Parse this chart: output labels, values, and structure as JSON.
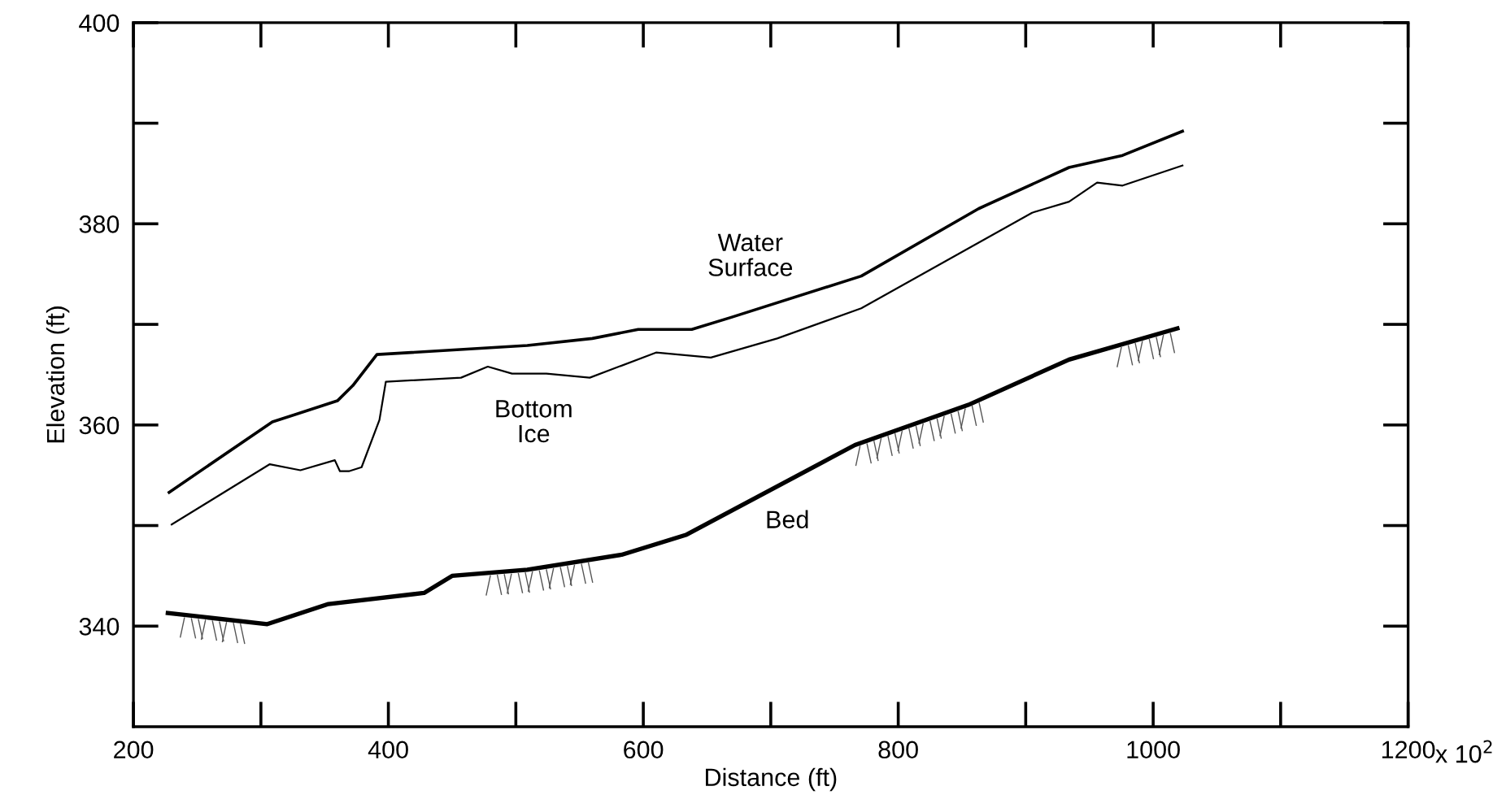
{
  "chart_data": {
    "type": "line",
    "xlabel": "Distance (ft)",
    "ylabel": "Elevation (ft)",
    "xlim": [
      200,
      1200
    ],
    "ylim": [
      330,
      400
    ],
    "xticks": [
      200,
      {
        "value": 300,
        "label": null
      },
      400,
      {
        "value": 500,
        "label": null
      },
      600,
      {
        "value": 700,
        "label": null
      },
      800,
      {
        "value": 900,
        "label": null
      },
      1000,
      {
        "value": 1100,
        "label": null
      },
      1200
    ],
    "yticks": [
      340,
      {
        "value": 350,
        "label": null
      },
      360,
      {
        "value": 370,
        "label": null
      },
      380,
      {
        "value": 390,
        "label": null
      },
      400
    ],
    "grid": false,
    "legend": false,
    "marker": "none",
    "line_style": "solid",
    "series": [
      {
        "name": "Water\nSurface",
        "color": "#000000",
        "x": [
          228,
          309,
          360,
          372,
          391,
          509,
          560,
          596,
          638,
          669,
          771,
          863,
          934,
          976,
          1023
        ],
        "values": [
          353.3,
          360.3,
          362.4,
          363.9,
          367.0,
          367.9,
          368.6,
          369.5,
          369.5,
          370.7,
          374.8,
          381.5,
          385.6,
          386.8,
          389.2
        ]
      },
      {
        "name": "Bottom\nIce",
        "color": "#000000",
        "x": [
          230,
          307,
          331,
          358,
          362,
          369,
          379,
          393,
          398,
          457,
          478,
          497,
          524,
          558,
          610,
          653,
          705,
          771,
          905,
          934,
          956,
          976,
          1023
        ],
        "values": [
          350.1,
          356.1,
          355.5,
          356.5,
          355.4,
          355.4,
          355.8,
          360.5,
          364.3,
          364.7,
          365.8,
          365.1,
          365.1,
          364.7,
          367.2,
          366.7,
          368.6,
          371.6,
          381.1,
          382.2,
          384.1,
          383.8,
          385.8
        ]
      },
      {
        "name": "Bed",
        "color": "#000000",
        "x": [
          227,
          305,
          353,
          428,
          450,
          509,
          583,
          634,
          766,
          855,
          934,
          1019
        ],
        "values": [
          341.3,
          340.2,
          342.2,
          343.3,
          345.0,
          345.6,
          347.1,
          349.1,
          358.0,
          362.0,
          366.5,
          369.6
        ]
      }
    ],
    "annotations": [
      "x 10$^{2}$"
    ]
  }
}
